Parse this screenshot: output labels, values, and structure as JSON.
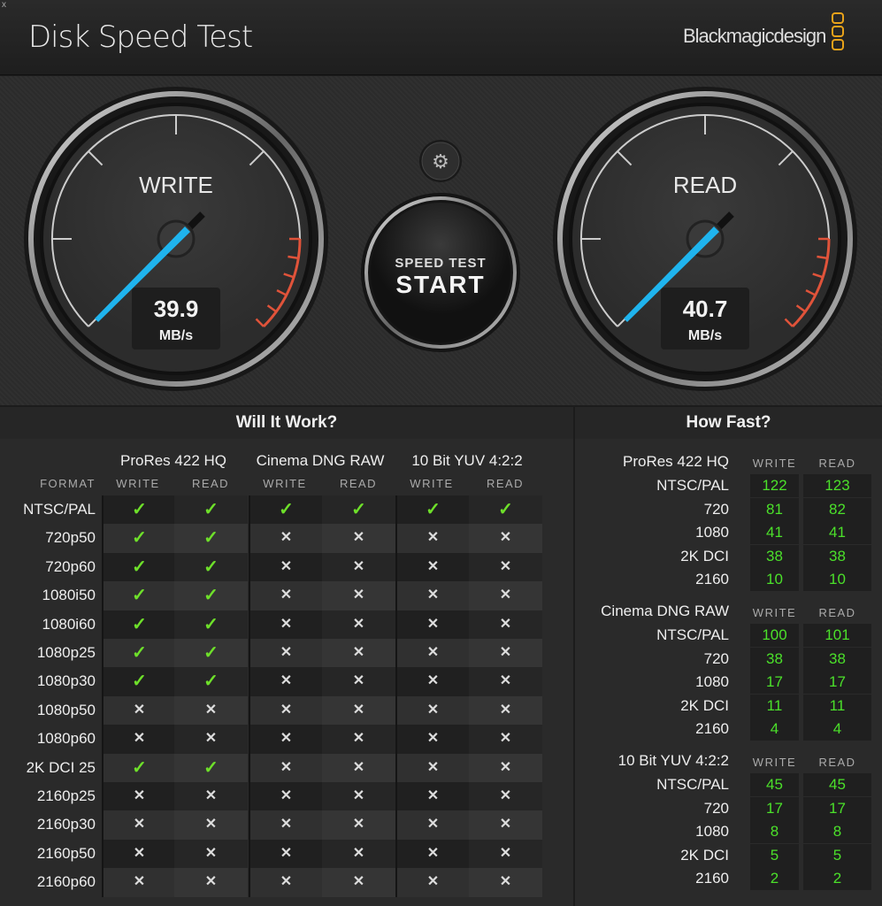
{
  "app": {
    "title": "Disk Speed Test",
    "brand": "Blackmagicdesign",
    "close": "x",
    "accent": "#1fb4ee",
    "warning": "#e0533a",
    "logo_color": "#e8a21a"
  },
  "gauges": {
    "write": {
      "label": "WRITE",
      "value": "39.9",
      "unit": "MB/s"
    },
    "read": {
      "label": "READ",
      "value": "40.7",
      "unit": "MB/s"
    }
  },
  "start_button": {
    "line1": "SPEED TEST",
    "line2": "START"
  },
  "settings_icon": "gear-icon",
  "will_it_work": {
    "title": "Will It Work?",
    "format_label": "FORMAT",
    "groups": [
      "ProRes 422 HQ",
      "Cinema DNG RAW",
      "10 Bit YUV 4:2:2"
    ],
    "subcols": [
      "WRITE",
      "READ",
      "WRITE",
      "READ",
      "WRITE",
      "READ"
    ],
    "rows": [
      {
        "format": "NTSC/PAL",
        "results": [
          1,
          1,
          1,
          1,
          1,
          1
        ]
      },
      {
        "format": "720p50",
        "results": [
          1,
          1,
          0,
          0,
          0,
          0
        ]
      },
      {
        "format": "720p60",
        "results": [
          1,
          1,
          0,
          0,
          0,
          0
        ]
      },
      {
        "format": "1080i50",
        "results": [
          1,
          1,
          0,
          0,
          0,
          0
        ]
      },
      {
        "format": "1080i60",
        "results": [
          1,
          1,
          0,
          0,
          0,
          0
        ]
      },
      {
        "format": "1080p25",
        "results": [
          1,
          1,
          0,
          0,
          0,
          0
        ]
      },
      {
        "format": "1080p30",
        "results": [
          1,
          1,
          0,
          0,
          0,
          0
        ]
      },
      {
        "format": "1080p50",
        "results": [
          0,
          0,
          0,
          0,
          0,
          0
        ]
      },
      {
        "format": "1080p60",
        "results": [
          0,
          0,
          0,
          0,
          0,
          0
        ]
      },
      {
        "format": "2K DCI 25",
        "results": [
          1,
          1,
          0,
          0,
          0,
          0
        ]
      },
      {
        "format": "2160p25",
        "results": [
          0,
          0,
          0,
          0,
          0,
          0
        ]
      },
      {
        "format": "2160p30",
        "results": [
          0,
          0,
          0,
          0,
          0,
          0
        ]
      },
      {
        "format": "2160p50",
        "results": [
          0,
          0,
          0,
          0,
          0,
          0
        ]
      },
      {
        "format": "2160p60",
        "results": [
          0,
          0,
          0,
          0,
          0,
          0
        ]
      }
    ],
    "check": "✓",
    "cross": "✕"
  },
  "how_fast": {
    "title": "How Fast?",
    "write_label": "WRITE",
    "read_label": "READ",
    "groups": [
      {
        "name": "ProRes 422 HQ",
        "rows": [
          {
            "res": "NTSC/PAL",
            "write": "122",
            "read": "123"
          },
          {
            "res": "720",
            "write": "81",
            "read": "82"
          },
          {
            "res": "1080",
            "write": "41",
            "read": "41"
          },
          {
            "res": "2K DCI",
            "write": "38",
            "read": "38"
          },
          {
            "res": "2160",
            "write": "10",
            "read": "10"
          }
        ]
      },
      {
        "name": "Cinema DNG RAW",
        "rows": [
          {
            "res": "NTSC/PAL",
            "write": "100",
            "read": "101"
          },
          {
            "res": "720",
            "write": "38",
            "read": "38"
          },
          {
            "res": "1080",
            "write": "17",
            "read": "17"
          },
          {
            "res": "2K DCI",
            "write": "11",
            "read": "11"
          },
          {
            "res": "2160",
            "write": "4",
            "read": "4"
          }
        ]
      },
      {
        "name": "10 Bit YUV 4:2:2",
        "rows": [
          {
            "res": "NTSC/PAL",
            "write": "45",
            "read": "45"
          },
          {
            "res": "720",
            "write": "17",
            "read": "17"
          },
          {
            "res": "1080",
            "write": "8",
            "read": "8"
          },
          {
            "res": "2K DCI",
            "write": "5",
            "read": "5"
          },
          {
            "res": "2160",
            "write": "2",
            "read": "2"
          }
        ]
      }
    ]
  }
}
